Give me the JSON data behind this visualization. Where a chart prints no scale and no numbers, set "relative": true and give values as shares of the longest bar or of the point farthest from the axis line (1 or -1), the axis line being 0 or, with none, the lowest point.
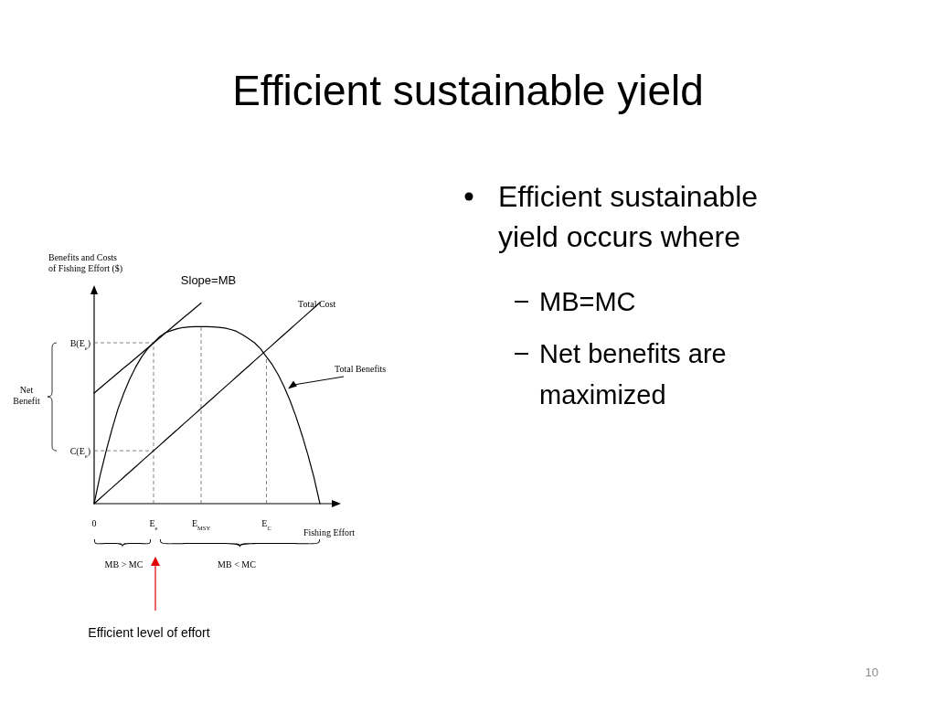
{
  "chart_data": {
    "type": "line",
    "relative": true,
    "title": "Efficient sustainable yield",
    "xlabel": "Fishing Effort",
    "ylabel": "Benefits and Costs of Fishing Effort ($)",
    "categories": [
      "0",
      null,
      null,
      null,
      null,
      null,
      null,
      null,
      null,
      null,
      "E$_{e}$",
      null,
      null,
      null,
      null,
      null,
      null,
      null,
      "E$_{MSY}$",
      null,
      null,
      null,
      null,
      null,
      null,
      null,
      null,
      null,
      null,
      "E$_{C}$",
      null,
      null,
      null,
      null,
      null,
      null,
      null,
      null,
      null,
      null,
      null,
      null
    ],
    "series": [
      {
        "name": "Total Benefits",
        "color": "#000000",
        "values": [
          0,
          0.14,
          0.26,
          0.37,
          0.47,
          0.55,
          0.62,
          0.68,
          0.73,
          0.77,
          0.8,
          0.83,
          0.85,
          0.861,
          0.87,
          0.876,
          0.879,
          0.88,
          0.88,
          0.88,
          0.879,
          0.877,
          0.873,
          0.866,
          0.856,
          0.84,
          0.82,
          0.8,
          0.77,
          0.73,
          0.69,
          0.64,
          0.58,
          0.51,
          0.43,
          0.34,
          0.24,
          0.13,
          0,
          null,
          null,
          null
        ]
      },
      {
        "name": "Total Cost",
        "color": "#000000",
        "values": [
          0,
          0.026,
          0.053,
          0.079,
          0.105,
          0.132,
          0.158,
          0.184,
          0.211,
          0.237,
          0.263,
          0.289,
          0.316,
          0.342,
          0.368,
          0.395,
          0.421,
          0.447,
          0.474,
          0.5,
          0.526,
          0.553,
          0.579,
          0.605,
          0.632,
          0.658,
          0.684,
          0.711,
          0.737,
          0.763,
          0.789,
          0.816,
          0.842,
          0.868,
          0.895,
          0.921,
          0.947,
          0.974,
          1,
          null,
          null,
          null
        ]
      },
      {
        "name": "Slope=MB",
        "color": "#000000",
        "values": [
          0.55,
          0.575,
          0.6,
          0.625,
          0.65,
          0.675,
          0.699,
          0.724,
          0.749,
          0.774,
          0.799,
          0.824,
          0.849,
          0.874,
          0.899,
          0.924,
          0.948,
          0.973,
          0.998,
          null,
          null,
          null,
          null,
          null,
          null,
          null,
          null,
          null,
          null,
          null,
          null,
          null,
          null,
          null,
          null,
          null,
          null,
          null,
          null,
          null,
          null,
          null
        ]
      }
    ],
    "ref_lines": [
      {
        "axis": "y",
        "value": 0.8,
        "label": "B(E$_{e}$)",
        "line_style": "dashed"
      },
      {
        "axis": "y",
        "value": 0.263,
        "label": "C(E$_{e}$)",
        "line_style": "dashed"
      },
      {
        "axis": "x",
        "value": "E$_{e}$",
        "line_style": "dashed"
      },
      {
        "axis": "x",
        "value": "E$_{MSY}$",
        "line_style": "dashed"
      },
      {
        "axis": "x",
        "value": "E$_{C}$",
        "line_style": "dashed"
      }
    ],
    "annotations": [
      "Net Benefit",
      "MB > MC",
      "MB < MC",
      "Efficient level of effort",
      "Efficient sustainable yield occurs where",
      "MB=MC",
      "Net benefits are maximized",
      "10"
    ],
    "legend": false,
    "grid": false,
    "marker": "none",
    "line_style": "solid"
  }
}
